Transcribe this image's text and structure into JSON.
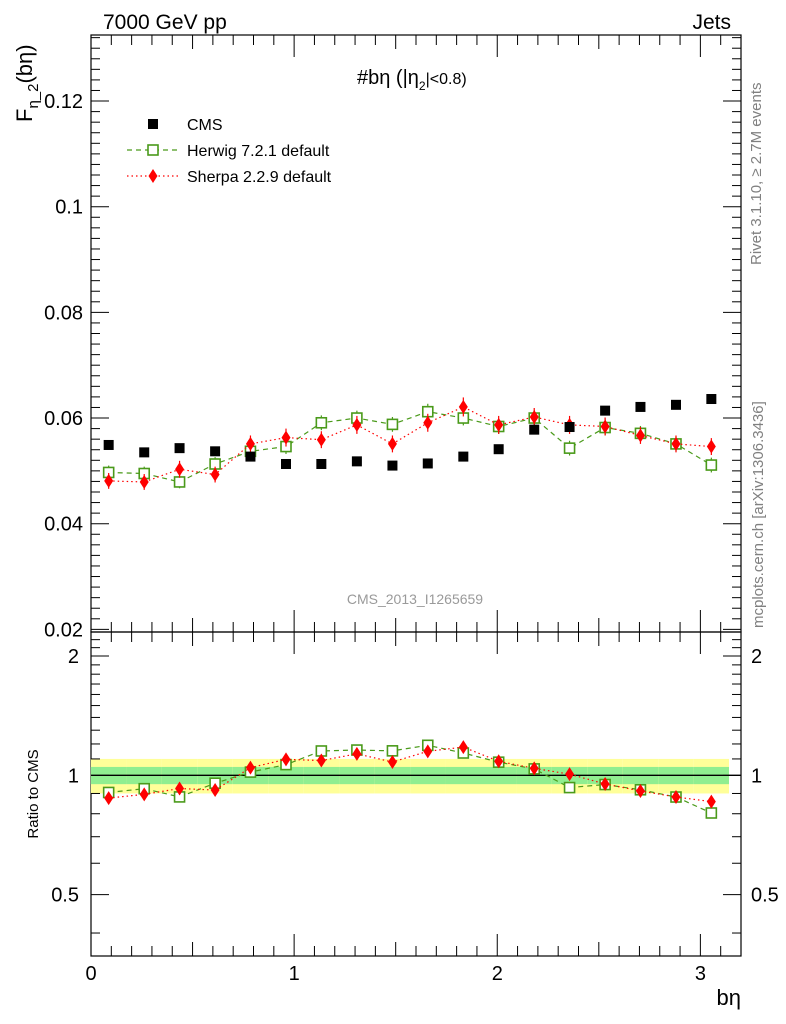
{
  "header": {
    "left": "7000 GeV pp",
    "right": "Jets"
  },
  "side": {
    "rivet": "Rivet 3.1.10, ≥ 2.7M events",
    "mcplots": "mcplots.cern.ch [arXiv:1306.3436]"
  },
  "chart_data": {
    "type": "scatter",
    "title": "#bη (|η",
    "title_sub": "2",
    "title_suffix": "|<0.8)",
    "ylabel_main": "F",
    "ylabel_sub": "η_2",
    "ylabel_suffix": "(bη)",
    "ratio_ylabel": "Ratio to CMS",
    "xlabel": "bη",
    "watermark": "CMS_2013_I1265659",
    "xlim": [
      0,
      3.2
    ],
    "ylim": [
      0.0195,
      0.1325
    ],
    "ratio_ylim": [
      0.35,
      2.3
    ],
    "main_yticks": [
      "0.02",
      "0.04",
      "0.06",
      "0.08",
      "0.1",
      "0.12"
    ],
    "ratio_yticks": [
      "0.5",
      "1",
      "2"
    ],
    "xticks": [
      "0",
      "1",
      "2",
      "3"
    ],
    "x": [
      0.087,
      0.262,
      0.436,
      0.611,
      0.785,
      0.96,
      1.134,
      1.309,
      1.484,
      1.658,
      1.833,
      2.007,
      2.182,
      2.356,
      2.531,
      2.705,
      2.88,
      3.054
    ],
    "series": [
      {
        "name": "CMS",
        "values": [
          0.0549,
          0.0535,
          0.0543,
          0.0537,
          0.0527,
          0.0513,
          0.0513,
          0.0518,
          0.051,
          0.0514,
          0.0527,
          0.0541,
          0.0578,
          0.0583,
          0.0614,
          0.0621,
          0.0625,
          0.0636
        ],
        "color": "#000000",
        "marker": "square"
      },
      {
        "name": "Herwig 7.2.1 default",
        "values": [
          0.0497,
          0.0495,
          0.0479,
          0.0513,
          0.0537,
          0.0546,
          0.0591,
          0.06,
          0.0588,
          0.0612,
          0.06,
          0.0584,
          0.06,
          0.0543,
          0.0582,
          0.0571,
          0.0551,
          0.0511
        ],
        "errors": [
          0.0013,
          0.0013,
          0.0012,
          0.0013,
          0.0013,
          0.0014,
          0.0014,
          0.0014,
          0.0014,
          0.0015,
          0.0014,
          0.0014,
          0.0015,
          0.0014,
          0.0015,
          0.0014,
          0.0014,
          0.0014
        ],
        "color": "#4a9a1a",
        "marker": "open-square",
        "dash": "5,4"
      },
      {
        "name": "Sherpa 2.2.9 default",
        "values": [
          0.0481,
          0.0479,
          0.0503,
          0.0493,
          0.0551,
          0.0563,
          0.0559,
          0.0587,
          0.0551,
          0.0591,
          0.0621,
          0.0587,
          0.0602,
          0.0587,
          0.0584,
          0.0567,
          0.0551,
          0.0546
        ],
        "errors": [
          0.0015,
          0.0015,
          0.0016,
          0.0015,
          0.0016,
          0.0017,
          0.0016,
          0.0017,
          0.0016,
          0.0017,
          0.0018,
          0.0017,
          0.0017,
          0.0017,
          0.0017,
          0.0016,
          0.0016,
          0.0016
        ],
        "color": "#ff0000",
        "marker": "diamond",
        "dash": "1.5,3"
      }
    ],
    "ratio_band": {
      "inner": [
        0.05,
        0.05,
        0.05,
        0.05,
        0.05,
        0.05,
        0.05,
        0.05,
        0.05,
        0.05,
        0.05,
        0.05,
        0.05,
        0.05,
        0.05,
        0.05,
        0.05,
        0.05
      ],
      "outer": [
        0.1,
        0.1,
        0.1,
        0.1,
        0.1,
        0.1,
        0.1,
        0.1,
        0.1,
        0.1,
        0.1,
        0.1,
        0.1,
        0.1,
        0.1,
        0.1,
        0.1,
        0.1
      ],
      "inner_color": "#90ee90",
      "outer_color": "#ffff99"
    }
  }
}
